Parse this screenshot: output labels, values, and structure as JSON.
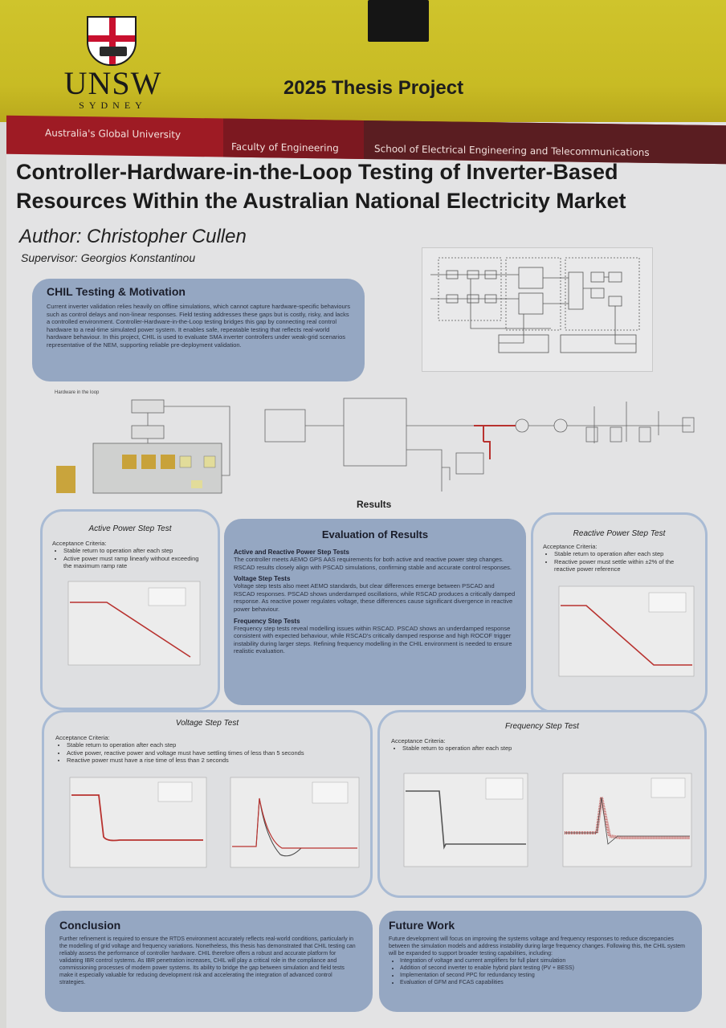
{
  "header": {
    "logo_text": "UNSW",
    "logo_subtext": "SYDNEY",
    "project_label": "2025 Thesis Project",
    "band": [
      "Australia's Global University",
      "Faculty of Engineering",
      "School of Electrical Engineering and Telecommunications"
    ]
  },
  "poster": {
    "title": "Controller-Hardware-in-the-Loop Testing of Inverter-Based Resources Within the Australian National Electricity Market",
    "author": "Author: Christopher Cullen",
    "supervisor": "Supervisor: Georgios Konstantinou"
  },
  "motivation": {
    "heading": "CHIL Testing & Motivation",
    "body": "Current inverter validation relies heavily on offline simulations, which cannot capture hardware-specific behaviours such as control delays and non-linear responses. Field testing addresses these gaps but is costly, risky, and lacks a controlled environment. Controller-Hardware-in-the-Loop testing bridges this gap by connecting real control hardware to a real-time simulated power system. It enables safe, repeatable testing that reflects real-world hardware behaviour. In this project, CHIL is used to evaluate SMA inverter controllers under weak-grid scenarios representative of the NEM, supporting reliable pre-deployment validation."
  },
  "diagram_labels": {
    "hil": "Hardware in the loop"
  },
  "results_heading": "Results",
  "evaluation": {
    "heading": "Evaluation of Results",
    "sections": [
      {
        "title": "Active and Reactive Power Step Tests",
        "body": "The controller meets AEMO GPS AAS requirements for both active and reactive power step changes. RSCAD results closely align with PSCAD simulations, confirming stable and accurate control responses."
      },
      {
        "title": "Voltage Step Tests",
        "body": "Voltage step tests also meet AEMO standards, but clear differences emerge between PSCAD and RSCAD responses. PSCAD shows underdamped oscillations, while RSCAD produces a critically damped response. As reactive power regulates voltage, these differences cause significant divergence in reactive power behaviour."
      },
      {
        "title": "Frequency Step Tests",
        "body": "Frequency step tests reveal modelling issues within RSCAD. PSCAD shows an underdamped response consistent with expected behaviour, while RSCAD's critically damped response and high ROCOF trigger instability during larger steps. Refining frequency modelling in the CHIL environment is needed to ensure realistic evaluation."
      }
    ]
  },
  "tests": {
    "active": {
      "title": "Active Power Step Test",
      "criteria_label": "Acceptance Criteria:",
      "criteria": [
        "Stable return to operation after each step",
        "Active power must ramp linearly without exceeding the maximum ramp rate"
      ]
    },
    "reactive": {
      "title": "Reactive Power Step Test",
      "criteria_label": "Acceptance Criteria:",
      "criteria": [
        "Stable return to operation after each step",
        "Reactive power must settle within ±2% of the reactive power reference"
      ]
    },
    "voltage": {
      "title": "Voltage Step Test",
      "criteria_label": "Acceptance Criteria:",
      "criteria": [
        "Stable return to operation after each step",
        "Active power, reactive power and voltage must have settling times of less than 5 seconds",
        "Reactive power must have a rise time of less than 2 seconds"
      ]
    },
    "frequency": {
      "title": "Frequency Step Test",
      "criteria_label": "Acceptance Criteria:",
      "criteria": [
        "Stable return to operation after each step"
      ]
    }
  },
  "conclusion": {
    "heading": "Conclusion",
    "body": "Further refinement is required to ensure the RTDS environment accurately reflects real-world conditions, particularly in the modelling of grid voltage and frequency variations. Nonetheless, this thesis has demonstrated that CHIL testing can reliably assess the performance of controller hardware. CHIL therefore offers a robust and accurate platform for validating IBR control systems. As IBR penetration increases, CHIL will play a critical role in the compliance and commissioning processes of modern power systems. Its ability to bridge the gap between simulation and field tests make it especially valuable for reducing development risk and accelerating the integration of advanced control strategies."
  },
  "future": {
    "heading": "Future Work",
    "body": "Future development will focus on improving the systems voltage and frequency responses to reduce discrepancies between the simulation models and address instability during large frequency changes. Following this, the CHIL system will be expanded to support broader testing capabilities, including:",
    "items": [
      "Integration of voltage and current amplifiers for full plant simulation",
      "Addition of second inverter to enable hybrid plant testing (PV + BESS)",
      "Implementation of second PPC for redundancy testing",
      "Evaluation of GFM and FCAS capabilities"
    ]
  },
  "colors": {
    "header_yellow": "#cfc42c",
    "band_red": "#9e1b24",
    "box_blue": "#95a7c2",
    "trace_red": "#b8322f"
  }
}
